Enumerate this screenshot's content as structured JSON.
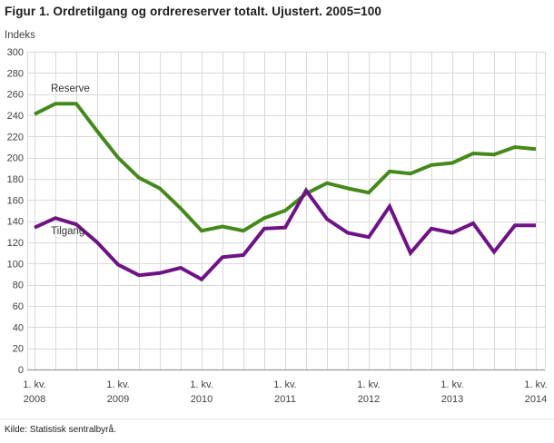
{
  "source": "Kilde: Statistisk sentralbyrå.",
  "colors": {
    "grid": "#d9d9d9",
    "axis": "#999999",
    "tick_text": "#3f3f3f",
    "title_text": "#1d1d1d",
    "reserve_green": "#45891c",
    "tilgang_purple": "#6e1385"
  },
  "chart_data": {
    "type": "line",
    "title": "Figur 1. Ordretilgang og ordrereserver totalt. Ujustert. 2005=100",
    "ylabel": "Indeks",
    "ylim": [
      0,
      300
    ],
    "ytick_step": 20,
    "grid": true,
    "legend_position": "inline-labels-on-plot",
    "x_tick_prefix": "1. kv.",
    "x_tick_years": [
      "2008",
      "2009",
      "2010",
      "2011",
      "2012",
      "2013",
      "2014"
    ],
    "categories": [
      "1. kv. 2008",
      "2. kv. 2008",
      "3. kv. 2008",
      "4. kv. 2008",
      "1. kv. 2009",
      "2. kv. 2009",
      "3. kv. 2009",
      "4. kv. 2009",
      "1. kv. 2010",
      "2. kv. 2010",
      "3. kv. 2010",
      "4. kv. 2010",
      "1. kv. 2011",
      "2. kv. 2011",
      "3. kv. 2011",
      "4. kv. 2011",
      "1. kv. 2012",
      "2. kv. 2012",
      "3. kv. 2012",
      "4. kv. 2012",
      "1. kv. 2013",
      "2. kv. 2013",
      "3. kv. 2013",
      "4. kv. 2013",
      "1. kv. 2014"
    ],
    "series": [
      {
        "name": "Reserve",
        "color": "#45891c",
        "values": [
          241,
          251,
          251,
          225,
          200,
          181,
          171,
          152,
          131,
          135,
          131,
          143,
          150,
          166,
          176,
          171,
          167,
          187,
          185,
          193,
          195,
          204,
          203,
          210,
          208
        ]
      },
      {
        "name": "Tilgang",
        "color": "#6e1385",
        "values": [
          134,
          143,
          137,
          120,
          99,
          89,
          91,
          96,
          85,
          106,
          108,
          133,
          134,
          169,
          142,
          129,
          125,
          154,
          110,
          133,
          129,
          138,
          111,
          136,
          136
        ]
      }
    ]
  }
}
